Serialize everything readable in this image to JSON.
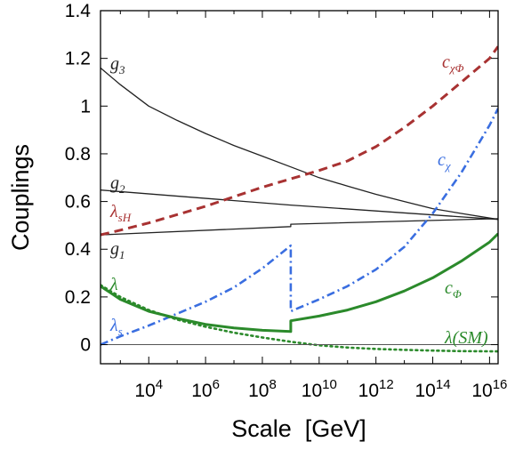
{
  "chart_data": {
    "type": "line",
    "xlabel": "Scale  [GeV]",
    "ylabel": "Couplings",
    "x_scale": "log",
    "xlim": [
      200,
      20000000000000000
    ],
    "ylim": [
      -0.08,
      1.4
    ],
    "x_ticks": [
      {
        "value": 10000,
        "base": "10",
        "exp": "4"
      },
      {
        "value": 1000000,
        "base": "10",
        "exp": "6"
      },
      {
        "value": 100000000,
        "base": "10",
        "exp": "8"
      },
      {
        "value": 10000000000,
        "base": "10",
        "exp": "10"
      },
      {
        "value": 1000000000000,
        "base": "10",
        "exp": "12"
      },
      {
        "value": 100000000000000,
        "base": "10",
        "exp": "14"
      },
      {
        "value": 10000000000000000,
        "base": "10",
        "exp": "16"
      }
    ],
    "y_ticks": [
      {
        "value": 0,
        "label": "0"
      },
      {
        "value": 0.2,
        "label": "0.2"
      },
      {
        "value": 0.4,
        "label": "0.4"
      },
      {
        "value": 0.6,
        "label": "0.6"
      },
      {
        "value": 0.8,
        "label": "0.8"
      },
      {
        "value": 1.0,
        "label": "1"
      },
      {
        "value": 1.2,
        "label": "1.2"
      },
      {
        "value": 1.4,
        "label": "1.4"
      }
    ],
    "grid": false,
    "series": [
      {
        "key": "g3",
        "label_main": "g",
        "label_sub": "3",
        "color": "#222222",
        "style": "solid",
        "width": 1.3,
        "x": [
          200,
          1000,
          10000,
          100000,
          1000000,
          10000000,
          100000000,
          1000000000,
          10000000000,
          100000000000,
          1000000000000,
          10000000000000,
          100000000000000,
          1000000000000000,
          20000000000000000
        ],
        "y": [
          1.16,
          1.09,
          1.0,
          0.94,
          0.885,
          0.835,
          0.79,
          0.745,
          0.7,
          0.665,
          0.63,
          0.6,
          0.57,
          0.55,
          0.525
        ]
      },
      {
        "key": "g2",
        "label_main": "g",
        "label_sub": "2",
        "color": "#222222",
        "style": "solid",
        "width": 1.3,
        "x": [
          200,
          1000000000,
          20000000000000000
        ],
        "y": [
          0.648,
          0.585,
          0.525
        ]
      },
      {
        "key": "g1",
        "label_main": "g",
        "label_sub": "1",
        "color": "#222222",
        "style": "solid",
        "width": 1.3,
        "x": [
          200,
          1000000000,
          1000000000,
          20000000000000000
        ],
        "y": [
          0.46,
          0.495,
          0.505,
          0.528
        ]
      },
      {
        "key": "chiPhi",
        "label_main": "c",
        "label_sub": "χΦ",
        "color": "#a83232",
        "style": "dash",
        "width": 3,
        "x": [
          200,
          1000,
          10000,
          100000,
          1000000,
          10000000,
          100000000,
          1000000000,
          10000000000,
          100000000000,
          1000000000000,
          10000000000000,
          100000000000000,
          1000000000000000,
          10000000000000000,
          20000000000000000
        ],
        "y": [
          0.46,
          0.48,
          0.51,
          0.545,
          0.58,
          0.62,
          0.66,
          0.695,
          0.73,
          0.77,
          0.83,
          0.91,
          1.0,
          1.1,
          1.2,
          1.25
        ]
      },
      {
        "key": "chi",
        "label_main": "c",
        "label_sub": "χ",
        "color": "#3a6ee0",
        "style": "dashdot",
        "width": 2.6,
        "x": [
          200,
          1000,
          10000,
          100000,
          1000000,
          10000000,
          100000000,
          1000000000,
          1000000000,
          10000000000,
          100000000000,
          1000000000000,
          10000000000000,
          100000000000000,
          1000000000000000,
          10000000000000000,
          20000000000000000
        ],
        "y": [
          0.0,
          0.035,
          0.08,
          0.13,
          0.18,
          0.24,
          0.32,
          0.415,
          0.14,
          0.19,
          0.245,
          0.315,
          0.41,
          0.55,
          0.72,
          0.92,
          0.99
        ]
      },
      {
        "key": "phi",
        "label_main": "c",
        "label_sub": "Φ",
        "color": "#2b8a2b",
        "style": "solid",
        "width": 3,
        "x": [
          200,
          1000,
          10000,
          100000,
          1000000,
          10000000,
          100000000,
          1000000000,
          1000000000,
          10000000000,
          100000000000,
          1000000000000,
          10000000000000,
          100000000000000,
          1000000000000000,
          10000000000000000,
          20000000000000000
        ],
        "y": [
          0.245,
          0.19,
          0.14,
          0.11,
          0.085,
          0.07,
          0.06,
          0.055,
          0.1,
          0.12,
          0.145,
          0.18,
          0.225,
          0.28,
          0.35,
          0.43,
          0.465
        ]
      },
      {
        "key": "lamSM",
        "label_main": "λ(SM)",
        "label_sub": "",
        "color": "#2b8a2b",
        "style": "dot",
        "width": 2.6,
        "x": [
          200,
          1000,
          10000,
          100000,
          1000000,
          10000000,
          100000000,
          1000000000,
          10000000000,
          100000000000,
          1000000000000,
          10000000000000,
          100000000000000,
          1000000000000000,
          20000000000000000
        ],
        "y": [
          0.25,
          0.2,
          0.145,
          0.105,
          0.075,
          0.05,
          0.03,
          0.012,
          -0.003,
          -0.012,
          -0.018,
          -0.022,
          -0.025,
          -0.027,
          -0.028
        ]
      },
      {
        "key": "zero",
        "label_main": "",
        "label_sub": "",
        "color": "#555555",
        "style": "solid",
        "width": 1,
        "x": [
          200,
          20000000000000000
        ],
        "y": [
          0.0,
          0.0
        ]
      }
    ],
    "annotations": [
      {
        "key": "g3",
        "main": "g",
        "sub": "3",
        "color": "#222222"
      },
      {
        "key": "g2",
        "main": "g",
        "sub": "2",
        "color": "#222222"
      },
      {
        "key": "lsH",
        "main": "λ",
        "sub": "sH",
        "color": "#a83232"
      },
      {
        "key": "g1",
        "main": "g",
        "sub": "1",
        "color": "#222222"
      },
      {
        "key": "lam",
        "main": "λ",
        "sub": "",
        "color": "#2b8a2b"
      },
      {
        "key": "ls",
        "main": "λ",
        "sub": "s",
        "color": "#3a6ee0"
      },
      {
        "key": "cchiPhi",
        "main": "c",
        "sub": "χΦ",
        "color": "#a83232"
      },
      {
        "key": "cchi",
        "main": "c",
        "sub": "χ",
        "color": "#3a6ee0"
      },
      {
        "key": "cPhi",
        "main": "c",
        "sub": "Φ",
        "color": "#2b8a2b"
      },
      {
        "key": "lamSM",
        "main": "λ(SM)",
        "sub": "",
        "color": "#2b8a2b"
      }
    ]
  }
}
